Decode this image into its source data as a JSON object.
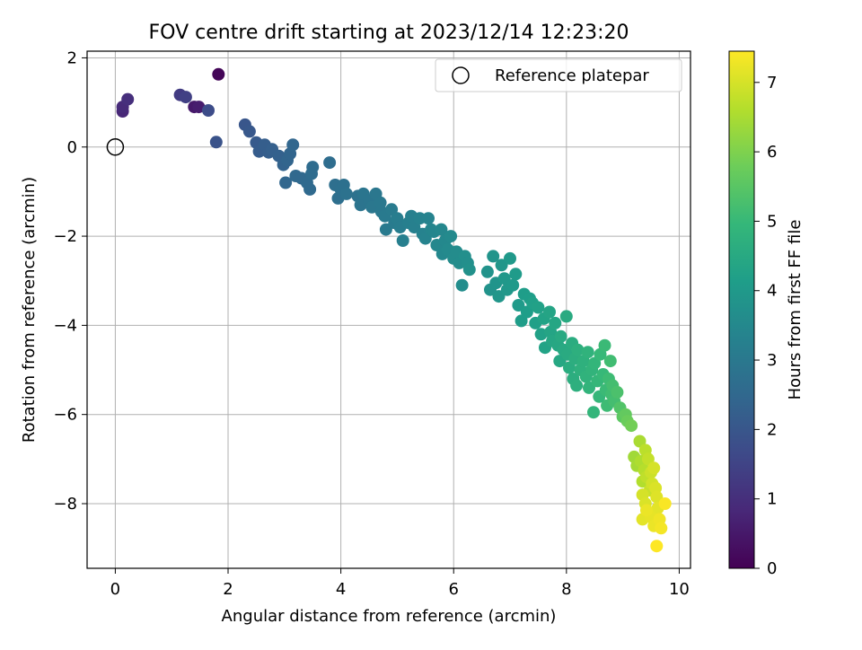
{
  "chart_data": {
    "type": "scatter",
    "title": "FOV centre drift starting at 2023/12/14 12:23:20",
    "xlabel": "Angular distance from reference (arcmin)",
    "ylabel": "Rotation from reference (arcmin)",
    "xlim": [
      -0.5,
      10.2
    ],
    "ylim": [
      -9.45,
      2.15
    ],
    "xticks": [
      0,
      2,
      4,
      6,
      8,
      10
    ],
    "yticks": [
      -8,
      -6,
      -4,
      -2,
      0,
      2
    ],
    "grid": true,
    "legend": {
      "position": "top-right",
      "entries": [
        "Reference platepar"
      ]
    },
    "reference": {
      "x": 0,
      "y": 0,
      "label": "Reference platepar"
    },
    "colorbar": {
      "label": "Hours from first FF file",
      "colormap": "viridis",
      "range": [
        0,
        7.45
      ],
      "ticks": [
        0,
        1,
        2,
        3,
        4,
        5,
        6,
        7
      ]
    },
    "points": [
      [
        1.83,
        1.63,
        0.1
      ],
      [
        1.4,
        0.9,
        0.5
      ],
      [
        1.48,
        0.9,
        0.6
      ],
      [
        0.13,
        0.8,
        0.8
      ],
      [
        0.13,
        0.9,
        0.9
      ],
      [
        0.22,
        1.07,
        1.0
      ],
      [
        1.15,
        1.17,
        1.3
      ],
      [
        1.25,
        1.12,
        1.4
      ],
      [
        1.65,
        0.82,
        1.7
      ],
      [
        1.79,
        0.11,
        1.9
      ],
      [
        2.3,
        0.5,
        2.0
      ],
      [
        2.38,
        0.35,
        2.05
      ],
      [
        2.5,
        0.1,
        2.1
      ],
      [
        2.55,
        -0.1,
        2.15
      ],
      [
        2.65,
        0.05,
        2.2
      ],
      [
        2.72,
        -0.12,
        2.2
      ],
      [
        2.78,
        -0.05,
        2.25
      ],
      [
        2.9,
        -0.2,
        2.3
      ],
      [
        2.98,
        -0.4,
        2.35
      ],
      [
        3.05,
        -0.3,
        2.4
      ],
      [
        3.1,
        -0.15,
        2.4
      ],
      [
        3.15,
        0.05,
        2.45
      ],
      [
        3.02,
        -0.8,
        2.45
      ],
      [
        3.2,
        -0.65,
        2.5
      ],
      [
        3.3,
        -0.7,
        2.5
      ],
      [
        3.4,
        -0.8,
        2.55
      ],
      [
        3.45,
        -0.95,
        2.55
      ],
      [
        3.48,
        -0.6,
        2.6
      ],
      [
        3.5,
        -0.45,
        2.6
      ],
      [
        3.8,
        -0.35,
        2.65
      ],
      [
        3.9,
        -0.85,
        2.7
      ],
      [
        3.95,
        -1.15,
        2.7
      ],
      [
        4.0,
        -0.95,
        2.75
      ],
      [
        4.05,
        -0.85,
        2.75
      ],
      [
        4.1,
        -1.05,
        2.8
      ],
      [
        4.3,
        -1.1,
        2.8
      ],
      [
        4.35,
        -1.3,
        2.85
      ],
      [
        4.4,
        -1.05,
        2.9
      ],
      [
        4.5,
        -1.2,
        2.9
      ],
      [
        4.55,
        -1.35,
        2.95
      ],
      [
        4.62,
        -1.05,
        2.95
      ],
      [
        4.7,
        -1.25,
        3.0
      ],
      [
        4.72,
        -1.45,
        3.0
      ],
      [
        4.78,
        -1.55,
        3.05
      ],
      [
        4.8,
        -1.85,
        3.05
      ],
      [
        4.9,
        -1.4,
        3.1
      ],
      [
        4.95,
        -1.7,
        3.1
      ],
      [
        5.0,
        -1.6,
        3.15
      ],
      [
        5.05,
        -1.8,
        3.15
      ],
      [
        5.1,
        -2.1,
        3.2
      ],
      [
        5.2,
        -1.7,
        3.2
      ],
      [
        5.25,
        -1.55,
        3.25
      ],
      [
        5.3,
        -1.8,
        3.25
      ],
      [
        5.4,
        -1.6,
        3.3
      ],
      [
        5.45,
        -1.95,
        3.3
      ],
      [
        5.5,
        -2.05,
        3.35
      ],
      [
        5.55,
        -1.6,
        3.35
      ],
      [
        5.6,
        -1.85,
        3.4
      ],
      [
        5.65,
        -1.9,
        3.4
      ],
      [
        5.7,
        -2.2,
        3.45
      ],
      [
        5.78,
        -1.85,
        3.45
      ],
      [
        5.8,
        -2.4,
        3.5
      ],
      [
        5.85,
        -2.1,
        3.5
      ],
      [
        5.9,
        -2.3,
        3.55
      ],
      [
        5.95,
        -2.0,
        3.55
      ],
      [
        6.0,
        -2.5,
        3.6
      ],
      [
        6.05,
        -2.35,
        3.6
      ],
      [
        6.1,
        -2.6,
        3.65
      ],
      [
        6.15,
        -3.1,
        3.65
      ],
      [
        6.2,
        -2.45,
        3.7
      ],
      [
        6.25,
        -2.6,
        3.7
      ],
      [
        6.28,
        -2.75,
        3.75
      ],
      [
        6.6,
        -2.8,
        3.8
      ],
      [
        6.65,
        -3.2,
        3.8
      ],
      [
        6.7,
        -2.45,
        3.85
      ],
      [
        6.75,
        -3.05,
        3.85
      ],
      [
        6.8,
        -3.35,
        3.9
      ],
      [
        6.85,
        -2.65,
        3.9
      ],
      [
        6.9,
        -2.95,
        3.95
      ],
      [
        6.95,
        -3.2,
        3.95
      ],
      [
        7.0,
        -2.5,
        4.0
      ],
      [
        7.05,
        -3.1,
        4.0
      ],
      [
        7.1,
        -2.85,
        4.05
      ],
      [
        7.15,
        -3.55,
        4.05
      ],
      [
        7.2,
        -3.9,
        4.1
      ],
      [
        7.25,
        -3.3,
        4.1
      ],
      [
        7.3,
        -3.7,
        4.15
      ],
      [
        7.35,
        -3.4,
        4.15
      ],
      [
        7.4,
        -3.5,
        4.2
      ],
      [
        7.45,
        -3.95,
        4.2
      ],
      [
        7.5,
        -3.6,
        4.25
      ],
      [
        7.55,
        -4.2,
        4.25
      ],
      [
        7.6,
        -3.85,
        4.3
      ],
      [
        7.62,
        -4.5,
        4.3
      ],
      [
        7.7,
        -3.7,
        4.35
      ],
      [
        7.72,
        -4.15,
        4.35
      ],
      [
        7.75,
        -4.35,
        4.4
      ],
      [
        7.8,
        -3.95,
        4.4
      ],
      [
        7.85,
        -4.45,
        4.45
      ],
      [
        7.88,
        -4.8,
        4.45
      ],
      [
        7.9,
        -4.25,
        4.5
      ],
      [
        7.95,
        -4.55,
        4.5
      ],
      [
        8.0,
        -3.8,
        4.55
      ],
      [
        8.02,
        -4.65,
        4.55
      ],
      [
        8.05,
        -4.95,
        4.6
      ],
      [
        8.1,
        -4.4,
        4.6
      ],
      [
        8.12,
        -5.2,
        4.65
      ],
      [
        8.15,
        -4.75,
        4.65
      ],
      [
        8.18,
        -5.35,
        4.7
      ],
      [
        8.2,
        -4.55,
        4.7
      ],
      [
        8.25,
        -5.0,
        4.75
      ],
      [
        8.3,
        -4.8,
        4.75
      ],
      [
        8.35,
        -5.15,
        4.8
      ],
      [
        8.38,
        -4.6,
        4.8
      ],
      [
        8.4,
        -5.4,
        4.85
      ],
      [
        8.45,
        -5.0,
        4.85
      ],
      [
        8.48,
        -5.95,
        4.9
      ],
      [
        8.5,
        -4.85,
        4.9
      ],
      [
        8.55,
        -5.25,
        4.95
      ],
      [
        8.58,
        -5.6,
        4.95
      ],
      [
        8.6,
        -4.65,
        5.0
      ],
      [
        8.65,
        -5.1,
        5.0
      ],
      [
        8.68,
        -4.45,
        5.05
      ],
      [
        8.7,
        -5.45,
        5.05
      ],
      [
        8.72,
        -5.8,
        5.1
      ],
      [
        8.75,
        -5.2,
        5.1
      ],
      [
        8.78,
        -4.8,
        5.15
      ],
      [
        8.8,
        -5.55,
        5.15
      ],
      [
        8.82,
        -5.35,
        5.2
      ],
      [
        8.85,
        -5.7,
        5.2
      ],
      [
        8.9,
        -5.5,
        5.3
      ],
      [
        8.95,
        -5.85,
        5.4
      ],
      [
        9.0,
        -6.05,
        5.55
      ],
      [
        9.05,
        -6.0,
        5.65
      ],
      [
        9.08,
        -6.15,
        5.75
      ],
      [
        9.15,
        -6.25,
        5.85
      ],
      [
        9.2,
        -6.95,
        6.4
      ],
      [
        9.25,
        -7.15,
        6.45
      ],
      [
        9.3,
        -6.6,
        6.5
      ],
      [
        9.32,
        -7.05,
        6.55
      ],
      [
        9.35,
        -7.5,
        6.6
      ],
      [
        9.38,
        -7.25,
        6.65
      ],
      [
        9.4,
        -6.8,
        6.7
      ],
      [
        9.42,
        -7.4,
        6.75
      ],
      [
        9.45,
        -7.0,
        6.8
      ],
      [
        9.48,
        -7.7,
        6.85
      ],
      [
        9.5,
        -7.3,
        6.9
      ],
      [
        9.52,
        -7.55,
        6.95
      ],
      [
        9.55,
        -7.2,
        7.0
      ],
      [
        9.35,
        -7.8,
        7.0
      ],
      [
        9.58,
        -7.65,
        7.05
      ],
      [
        9.4,
        -8.0,
        7.05
      ],
      [
        9.6,
        -7.85,
        7.1
      ],
      [
        9.45,
        -8.2,
        7.1
      ],
      [
        9.62,
        -8.1,
        7.15
      ],
      [
        9.35,
        -8.35,
        7.15
      ],
      [
        9.5,
        -8.3,
        7.2
      ],
      [
        9.55,
        -8.5,
        7.25
      ],
      [
        9.42,
        -8.15,
        7.25
      ],
      [
        9.65,
        -8.35,
        7.3
      ],
      [
        9.68,
        -8.55,
        7.35
      ],
      [
        9.75,
        -8.0,
        7.4
      ],
      [
        9.6,
        -8.95,
        7.45
      ]
    ]
  }
}
